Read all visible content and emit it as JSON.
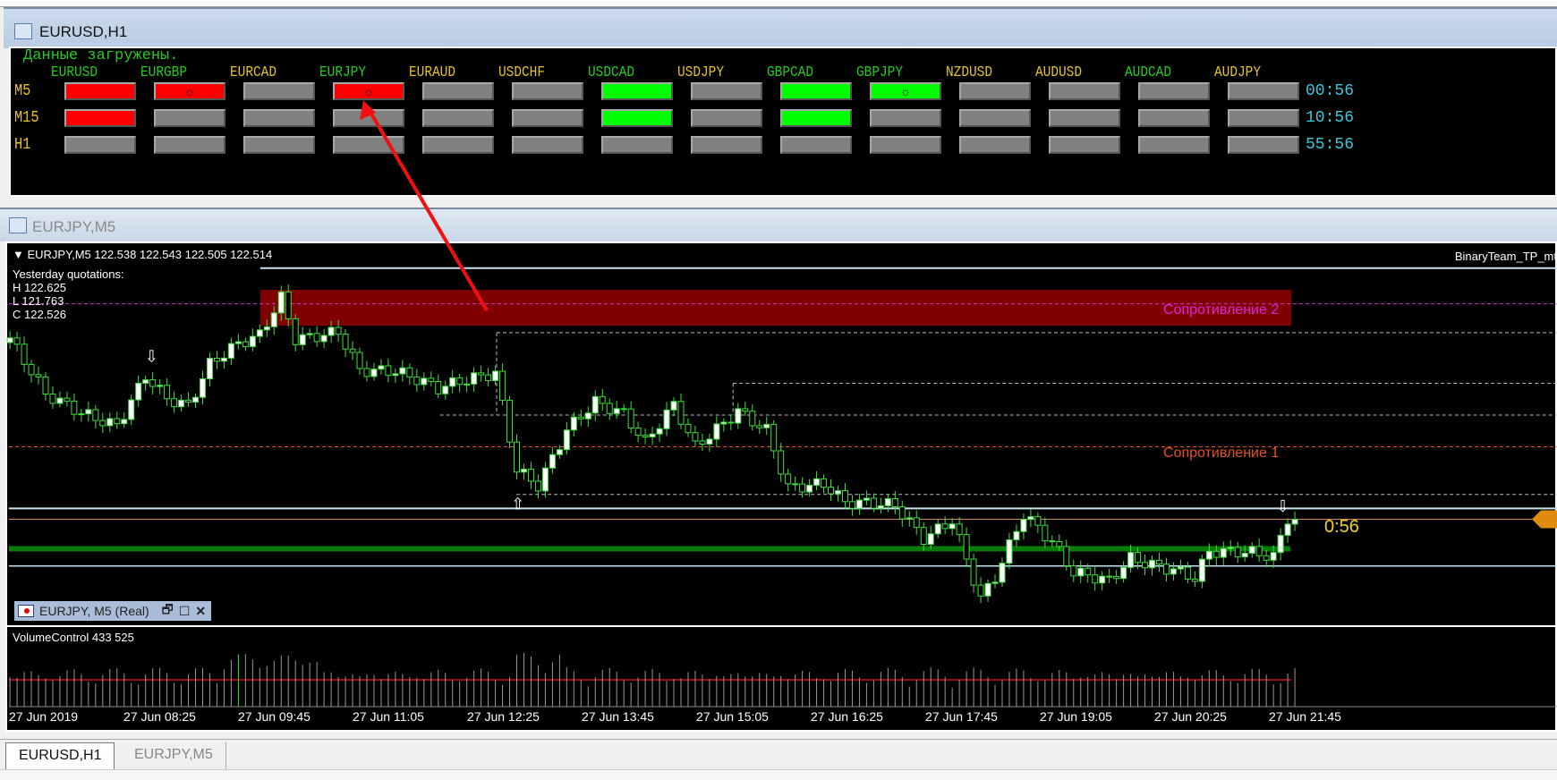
{
  "top_window": {
    "title": "EURUSD,H1",
    "status": "Данные загружены.",
    "symbols": [
      {
        "name": "EURUSD",
        "color": "#22cc22"
      },
      {
        "name": "EURGBP",
        "color": "#22cc22"
      },
      {
        "name": "EURCAD",
        "color": "#e6c229"
      },
      {
        "name": "EURJPY",
        "color": "#22cc22"
      },
      {
        "name": "EURAUD",
        "color": "#e6c229"
      },
      {
        "name": "USDCHF",
        "color": "#e6c229"
      },
      {
        "name": "USDCAD",
        "color": "#22cc22"
      },
      {
        "name": "USDJPY",
        "color": "#e6c229"
      },
      {
        "name": "GBPCAD",
        "color": "#22cc22"
      },
      {
        "name": "GBPJPY",
        "color": "#22cc22"
      },
      {
        "name": "NZDUSD",
        "color": "#e6c229"
      },
      {
        "name": "AUDUSD",
        "color": "#e6c229"
      },
      {
        "name": "AUDCAD",
        "color": "#22cc22"
      },
      {
        "name": "AUDJPY",
        "color": "#e6c229"
      }
    ],
    "rows": [
      {
        "label": "M5",
        "timer": "00:56",
        "cells": [
          "red",
          "red*",
          "gray",
          "red*",
          "gray",
          "gray",
          "green",
          "gray",
          "green",
          "green*",
          "gray",
          "gray",
          "gray",
          "gray"
        ]
      },
      {
        "label": "M15",
        "timer": "10:56",
        "cells": [
          "red",
          "gray",
          "gray",
          "gray",
          "gray",
          "gray",
          "green",
          "gray",
          "green",
          "gray",
          "gray",
          "gray",
          "gray",
          "gray"
        ]
      },
      {
        "label": "H1",
        "timer": "55:56",
        "cells": [
          "gray",
          "gray",
          "gray",
          "gray",
          "gray",
          "gray",
          "gray",
          "gray",
          "gray",
          "gray",
          "gray",
          "gray",
          "gray",
          "gray"
        ]
      }
    ],
    "colors": {
      "red": "#ff0000",
      "green": "#00ff00",
      "gray": "#808080"
    }
  },
  "chart_window": {
    "title": "EURJPY,M5",
    "header": "EURJPY,M5  122.538 122.543 122.505 122.514",
    "indicator_name": "BinaryTeam_TP_mt",
    "yesterday": {
      "title": "Yesterday quotations:",
      "high": "H 122.625",
      "low": "L 121.763",
      "close": "C 122.526"
    },
    "resistance_2": "Сопротивление 2",
    "resistance_1": "Сопротивление 1",
    "countdown": "0:56",
    "bid": 122.514,
    "mini_bar": {
      "title": "EURJPY, M5 (Real)"
    },
    "volume_label": "VolumeControl 433 525",
    "time_labels": [
      "27 Jun 2019",
      "27 Jun 08:25",
      "27 Jun 09:45",
      "27 Jun 11:05",
      "27 Jun 12:25",
      "27 Jun 13:45",
      "27 Jun 15:05",
      "27 Jun 16:25",
      "27 Jun 17:45",
      "27 Jun 19:05",
      "27 Jun 20:25",
      "27 Jun 21:45"
    ],
    "price_path": [
      [
        "07:05",
        122.692
      ],
      [
        "07:30",
        122.637
      ],
      [
        "07:55",
        122.622
      ],
      [
        "08:20",
        122.612
      ],
      [
        "08:40",
        122.662
      ],
      [
        "08:55",
        122.637
      ],
      [
        "09:10",
        122.627
      ],
      [
        "09:25",
        122.667
      ],
      [
        "09:45",
        122.687
      ],
      [
        "10:00",
        122.697
      ],
      [
        "10:15",
        122.737
      ],
      [
        "10:25",
        122.697
      ],
      [
        "10:55",
        122.707
      ],
      [
        "11:10",
        122.667
      ],
      [
        "11:35",
        122.662
      ],
      [
        "12:05",
        122.642
      ],
      [
        "12:25",
        122.652
      ],
      [
        "12:45",
        122.662
      ],
      [
        "13:00",
        122.567
      ],
      [
        "13:15",
        122.552
      ],
      [
        "13:35",
        122.607
      ],
      [
        "13:55",
        122.632
      ],
      [
        "14:15",
        122.617
      ],
      [
        "14:30",
        122.587
      ],
      [
        "14:50",
        122.627
      ],
      [
        "15:05",
        122.587
      ],
      [
        "15:35",
        122.627
      ],
      [
        "15:55",
        122.607
      ],
      [
        "16:10",
        122.547
      ],
      [
        "16:35",
        122.547
      ],
      [
        "16:50",
        122.527
      ],
      [
        "17:25",
        122.527
      ],
      [
        "17:45",
        122.497
      ],
      [
        "18:05",
        122.517
      ],
      [
        "18:25",
        122.437
      ],
      [
        "18:35",
        122.457
      ],
      [
        "18:55",
        122.517
      ],
      [
        "19:15",
        122.487
      ],
      [
        "19:30",
        122.457
      ],
      [
        "19:55",
        122.452
      ],
      [
        "20:10",
        122.477
      ],
      [
        "20:40",
        122.467
      ],
      [
        "20:55",
        122.457
      ],
      [
        "21:05",
        122.482
      ],
      [
        "21:35",
        122.477
      ],
      [
        "21:50",
        122.472
      ],
      [
        "22:00",
        122.512
      ],
      [
        "22:05",
        122.514
      ]
    ]
  },
  "tabs": [
    {
      "label": "EURUSD,H1",
      "active": true
    },
    {
      "label": "EURJPY,M5",
      "active": false
    }
  ]
}
